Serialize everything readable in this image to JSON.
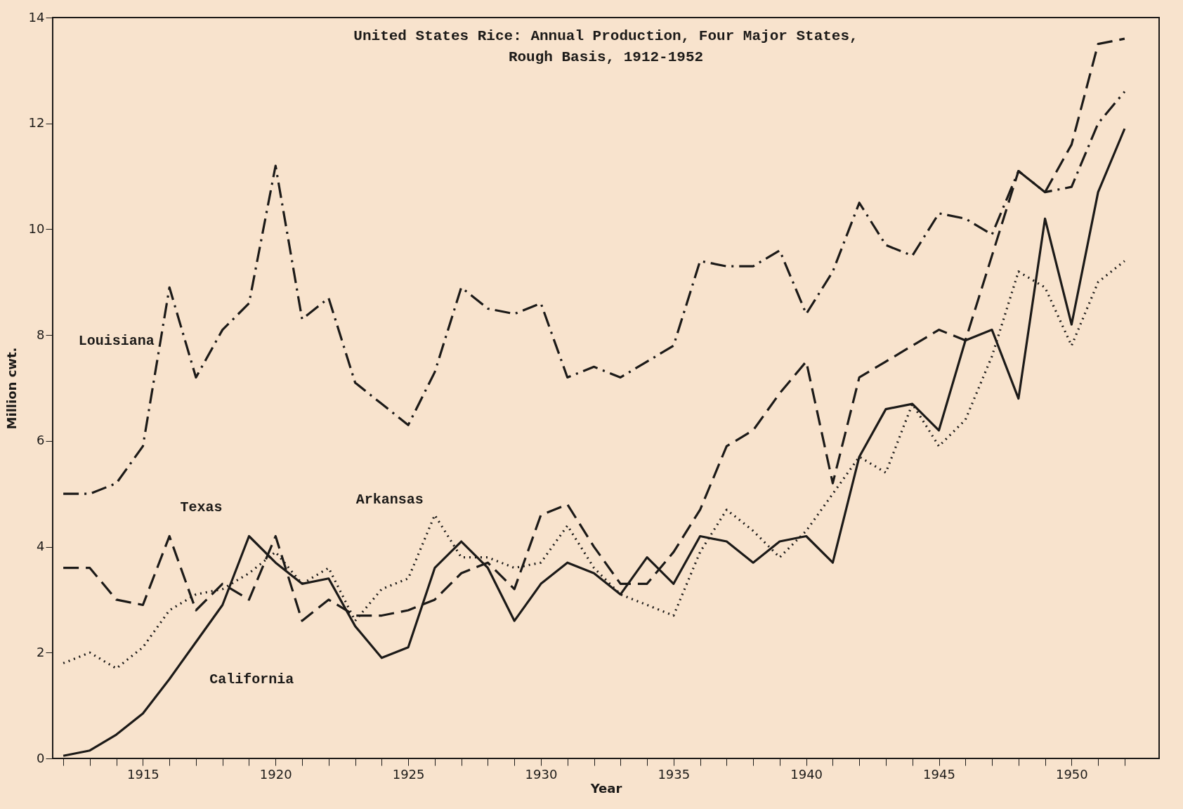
{
  "chart_data": {
    "type": "line",
    "title": "United States Rice:  Annual Production, Four Major States,\nRough Basis, 1912-1952",
    "xlabel": "Year",
    "ylabel": "Million cwt.",
    "x": [
      1912,
      1913,
      1914,
      1915,
      1916,
      1917,
      1918,
      1919,
      1920,
      1921,
      1922,
      1923,
      1924,
      1925,
      1926,
      1927,
      1928,
      1929,
      1930,
      1931,
      1932,
      1933,
      1934,
      1935,
      1936,
      1937,
      1938,
      1939,
      1940,
      1941,
      1942,
      1943,
      1944,
      1945,
      1946,
      1947,
      1948,
      1949,
      1950,
      1951,
      1952
    ],
    "series": [
      {
        "name": "Louisiana",
        "color": "#1c1a18",
        "line_style": "dashdot",
        "values": [
          5.0,
          5.0,
          5.2,
          5.9,
          8.9,
          7.2,
          8.1,
          8.6,
          11.2,
          8.3,
          8.7,
          7.1,
          6.7,
          6.3,
          7.3,
          8.9,
          8.5,
          8.4,
          8.6,
          7.2,
          7.4,
          7.2,
          7.5,
          7.8,
          9.4,
          9.3,
          9.3,
          9.6,
          8.4,
          9.2,
          10.5,
          9.7,
          9.5,
          10.3,
          10.2,
          9.9,
          11.1,
          10.7,
          10.8,
          12.0,
          12.6
        ]
      },
      {
        "name": "Texas",
        "color": "#1c1a18",
        "line_style": "dashed",
        "values": [
          3.6,
          3.6,
          3.0,
          2.9,
          4.2,
          2.8,
          3.3,
          3.0,
          4.2,
          2.6,
          3.0,
          2.7,
          2.7,
          2.8,
          3.0,
          3.5,
          3.7,
          3.2,
          4.6,
          4.8,
          4.0,
          3.3,
          3.3,
          3.9,
          4.7,
          5.9,
          6.2,
          6.9,
          7.5,
          5.2,
          7.2,
          7.5,
          7.8,
          8.1,
          7.9,
          9.5,
          11.1,
          10.7,
          11.6,
          13.5,
          13.6
        ]
      },
      {
        "name": "Arkansas",
        "color": "#1c1a18",
        "line_style": "dotted",
        "values": [
          1.8,
          2.0,
          1.7,
          2.1,
          2.8,
          3.1,
          3.2,
          3.5,
          3.9,
          3.3,
          3.6,
          2.6,
          3.2,
          3.4,
          4.6,
          3.8,
          3.8,
          3.6,
          3.7,
          4.4,
          3.6,
          3.1,
          2.9,
          2.7,
          3.9,
          4.7,
          4.3,
          3.8,
          4.3,
          5.0,
          5.7,
          5.4,
          6.7,
          5.9,
          6.4,
          7.6,
          9.2,
          8.9,
          7.8,
          9.0,
          9.4
        ]
      },
      {
        "name": "California",
        "color": "#1c1a18",
        "line_style": "solid",
        "values": [
          0.05,
          0.15,
          0.45,
          0.85,
          1.5,
          2.2,
          2.9,
          4.2,
          3.7,
          3.3,
          3.4,
          2.5,
          1.9,
          2.1,
          3.6,
          4.1,
          3.6,
          2.6,
          3.3,
          3.7,
          3.5,
          3.1,
          3.8,
          3.3,
          4.2,
          4.1,
          3.7,
          4.1,
          4.2,
          3.7,
          5.7,
          6.6,
          6.7,
          6.2,
          7.9,
          8.1,
          6.8,
          10.2,
          8.2,
          10.7,
          11.9
        ]
      }
    ],
    "xlim": [
      1911.6,
      1953.3
    ],
    "xticks": [
      {
        "value": 1912,
        "label": null
      },
      {
        "value": 1913,
        "label": null
      },
      {
        "value": 1914,
        "label": null
      },
      1915,
      {
        "value": 1916,
        "label": null
      },
      {
        "value": 1917,
        "label": null
      },
      {
        "value": 1918,
        "label": null
      },
      {
        "value": 1919,
        "label": null
      },
      1920,
      {
        "value": 1921,
        "label": null
      },
      {
        "value": 1922,
        "label": null
      },
      {
        "value": 1923,
        "label": null
      },
      {
        "value": 1924,
        "label": null
      },
      1925,
      {
        "value": 1926,
        "label": null
      },
      {
        "value": 1927,
        "label": null
      },
      {
        "value": 1928,
        "label": null
      },
      {
        "value": 1929,
        "label": null
      },
      1930,
      {
        "value": 1931,
        "label": null
      },
      {
        "value": 1932,
        "label": null
      },
      {
        "value": 1933,
        "label": null
      },
      {
        "value": 1934,
        "label": null
      },
      1935,
      {
        "value": 1936,
        "label": null
      },
      {
        "value": 1937,
        "label": null
      },
      {
        "value": 1938,
        "label": null
      },
      {
        "value": 1939,
        "label": null
      },
      1940,
      {
        "value": 1941,
        "label": null
      },
      {
        "value": 1942,
        "label": null
      },
      {
        "value": 1943,
        "label": null
      },
      {
        "value": 1944,
        "label": null
      },
      1945,
      {
        "value": 1946,
        "label": null
      },
      {
        "value": 1947,
        "label": null
      },
      {
        "value": 1948,
        "label": null
      },
      {
        "value": 1949,
        "label": null
      },
      1950,
      {
        "value": 1951,
        "label": null
      },
      {
        "value": 1952,
        "label": null
      }
    ],
    "ylim": [
      0,
      14
    ],
    "yticks": [
      0,
      2,
      4,
      6,
      8,
      10,
      12,
      14
    ],
    "grid": false,
    "legend": false
  }
}
